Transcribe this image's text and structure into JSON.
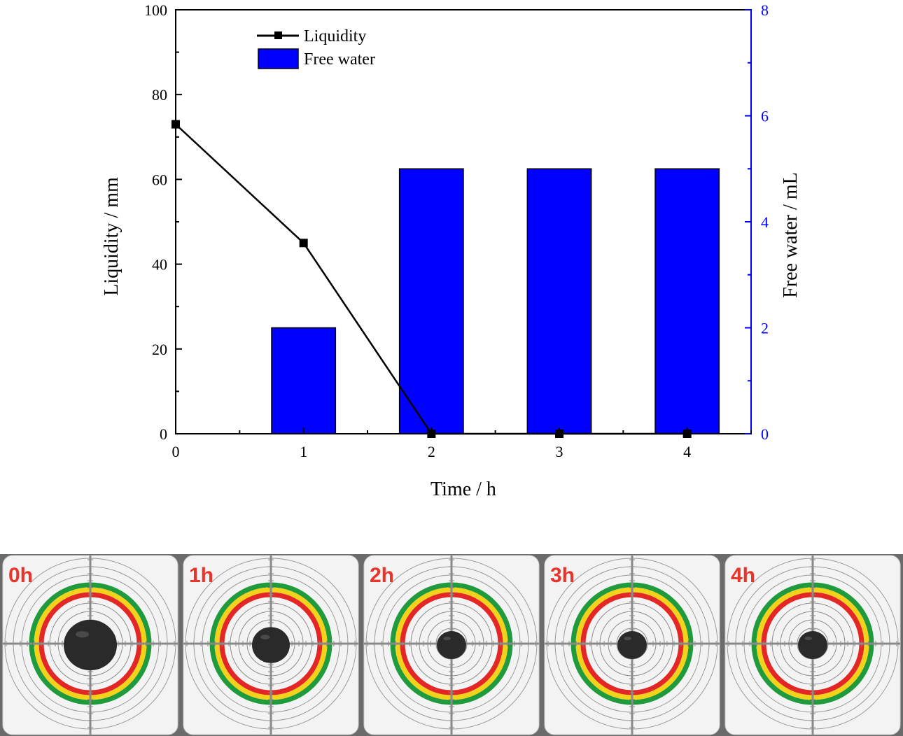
{
  "chart_data": {
    "type": "bar+line",
    "categories": [
      0,
      1,
      2,
      3,
      4
    ],
    "xlabel": "Time / h",
    "ylabel_left": "Liquidity / mm",
    "ylabel_right": "Free water / mL",
    "ylim_left": [
      0,
      100
    ],
    "ylim_right": [
      0,
      8
    ],
    "xlim": [
      0,
      4.5
    ],
    "yticks_left": [
      0,
      20,
      40,
      60,
      80,
      100
    ],
    "yticks_right": [
      0,
      2,
      4,
      6,
      8
    ],
    "xticks": [
      0,
      1,
      2,
      3,
      4
    ],
    "grid": false,
    "legend_position": "top-left",
    "series": [
      {
        "name": "Liquidity",
        "kind": "line",
        "axis": "left",
        "x": [
          0,
          1,
          2,
          3,
          4
        ],
        "values": [
          73,
          45,
          0,
          0,
          0
        ],
        "color": "#000000"
      },
      {
        "name": "Free water",
        "kind": "bar",
        "axis": "right",
        "x": [
          0,
          1,
          2,
          3,
          4
        ],
        "values": [
          0,
          2,
          5,
          5,
          5
        ],
        "color": "#0000ff"
      }
    ],
    "right_axis_color": "#0000ff"
  },
  "photos": {
    "labels": [
      "0h",
      "1h",
      "2h",
      "3h",
      "4h"
    ],
    "label_color": "#e8352b",
    "ring_colors": [
      "#1f9a3c",
      "#f2d21a",
      "#e32626"
    ],
    "sample_color": "#2a2a2a",
    "watermark_line1": [
      "",
      "",
      "",
      "",
      ""
    ],
    "watermark_line2": [
      "",
      "",
      "",
      "",
      ""
    ]
  }
}
